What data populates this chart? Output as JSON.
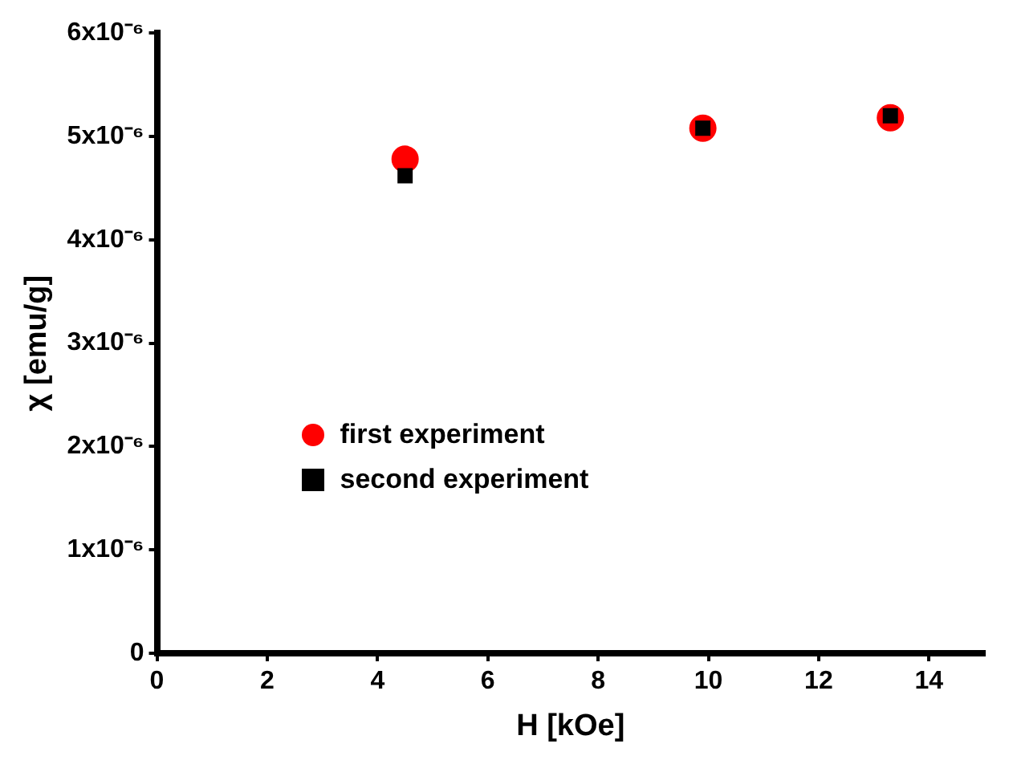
{
  "chart_data": {
    "type": "scatter",
    "xlabel": "H [kOe]",
    "ylabel": "χ [emu/g]",
    "series": [
      {
        "name": "first experiment",
        "color": "#ff0000",
        "marker": "circle",
        "x": [
          4.5,
          9.9,
          13.3
        ],
        "values": [
          4.78e-06,
          5.08e-06,
          5.18e-06
        ]
      },
      {
        "name": "second experiment",
        "color": "#000000",
        "marker": "square",
        "x": [
          4.5,
          9.9,
          13.3
        ],
        "values": [
          4.62e-06,
          5.08e-06,
          5.2e-06
        ]
      }
    ],
    "xlim": [
      0,
      15
    ],
    "xticks": [
      0,
      2,
      4,
      6,
      8,
      10,
      12,
      14
    ],
    "ylim": [
      0,
      6e-06
    ],
    "yticks": [
      0,
      {
        "value": 1e-06,
        "label": "1x10⁻⁶"
      },
      {
        "value": 2e-06,
        "label": "2x10⁻⁶"
      },
      {
        "value": 3e-06,
        "label": "3x10⁻⁶"
      },
      {
        "value": 4e-06,
        "label": "4x10⁻⁶"
      },
      {
        "value": 5e-06,
        "label": "5x10⁻⁶"
      },
      {
        "value": 6e-06,
        "label": "6x10⁻⁶"
      }
    ],
    "grid": false,
    "legend": "bottom left"
  }
}
